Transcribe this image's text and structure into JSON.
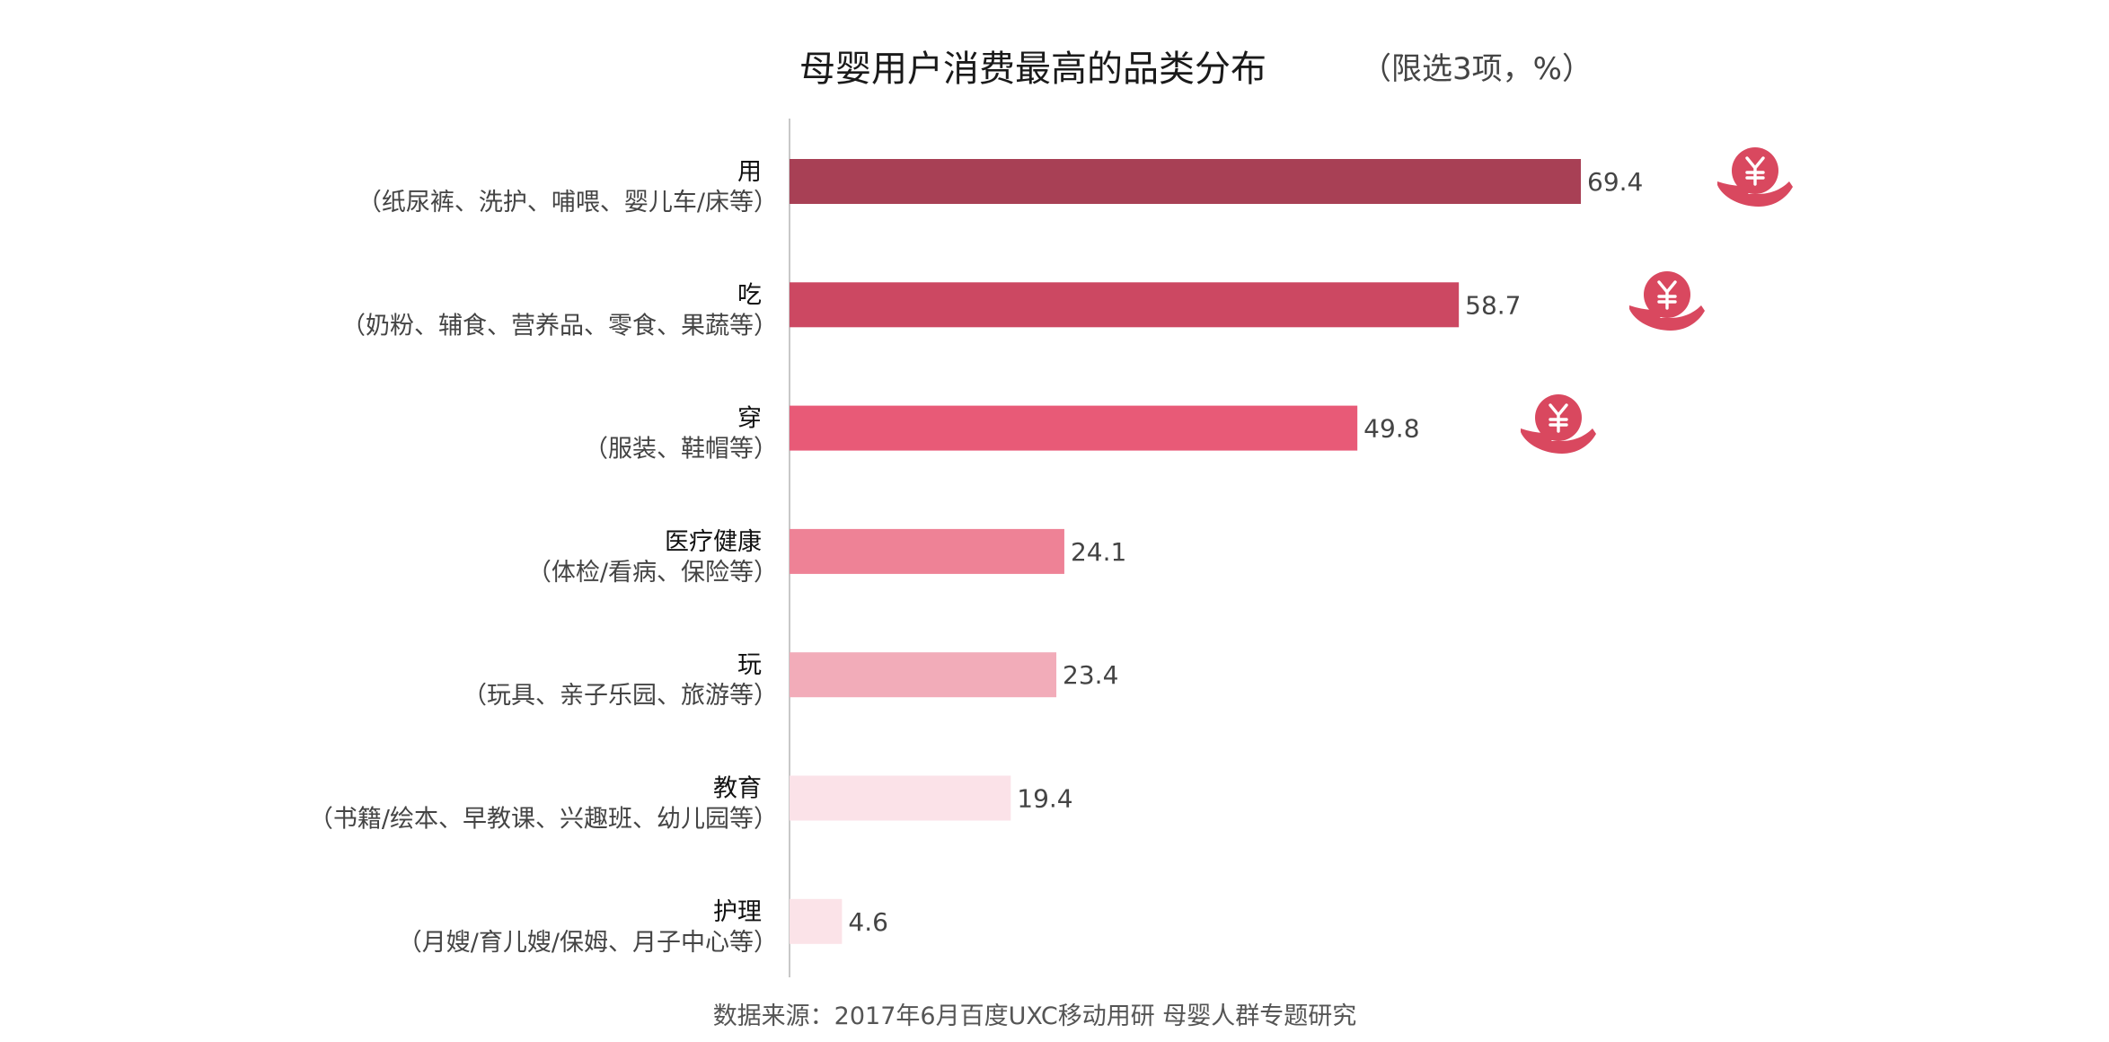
{
  "chart_data": {
    "type": "bar",
    "orientation": "horizontal",
    "title": "母婴用户消费最高的品类分布",
    "subtitle": "（限选3项，%）",
    "categories": [
      {
        "label": "用",
        "detail": "（纸尿裤、洗护、哺喂、婴儿车/床等）"
      },
      {
        "label": "吃",
        "detail": "（奶粉、辅食、营养品、零食、果蔬等）"
      },
      {
        "label": "穿",
        "detail": "（服装、鞋帽等）"
      },
      {
        "label": "医疗健康",
        "detail": "（体检/看病、保险等）"
      },
      {
        "label": "玩",
        "detail": "（玩具、亲子乐园、旅游等）"
      },
      {
        "label": "教育",
        "detail": "（书籍/绘本、早教课、兴趣班、幼儿园等）"
      },
      {
        "label": "护理",
        "detail": "（月嫂/育儿嫂/保姆、月子中心等）"
      }
    ],
    "values": [
      69.4,
      58.7,
      49.8,
      24.1,
      23.4,
      19.4,
      4.6
    ],
    "value_labels": [
      "69.4",
      "58.7",
      "49.8",
      "24.1",
      "23.4",
      "19.4",
      "4.6"
    ],
    "bar_colors": [
      "#a84055",
      "#cc4862",
      "#e85a77",
      "#ee8296",
      "#f2acb9",
      "#fbe2e8",
      "#fbe3e8"
    ],
    "highlight_icon": "yen-coin-hand-icon",
    "highlight_color": "#d9485f",
    "highlighted_bars": [
      0,
      1,
      2
    ],
    "grid": false,
    "legend": "none"
  },
  "source": "数据来源：2017年6月百度UXC移动用研 母婴人群专题研究"
}
